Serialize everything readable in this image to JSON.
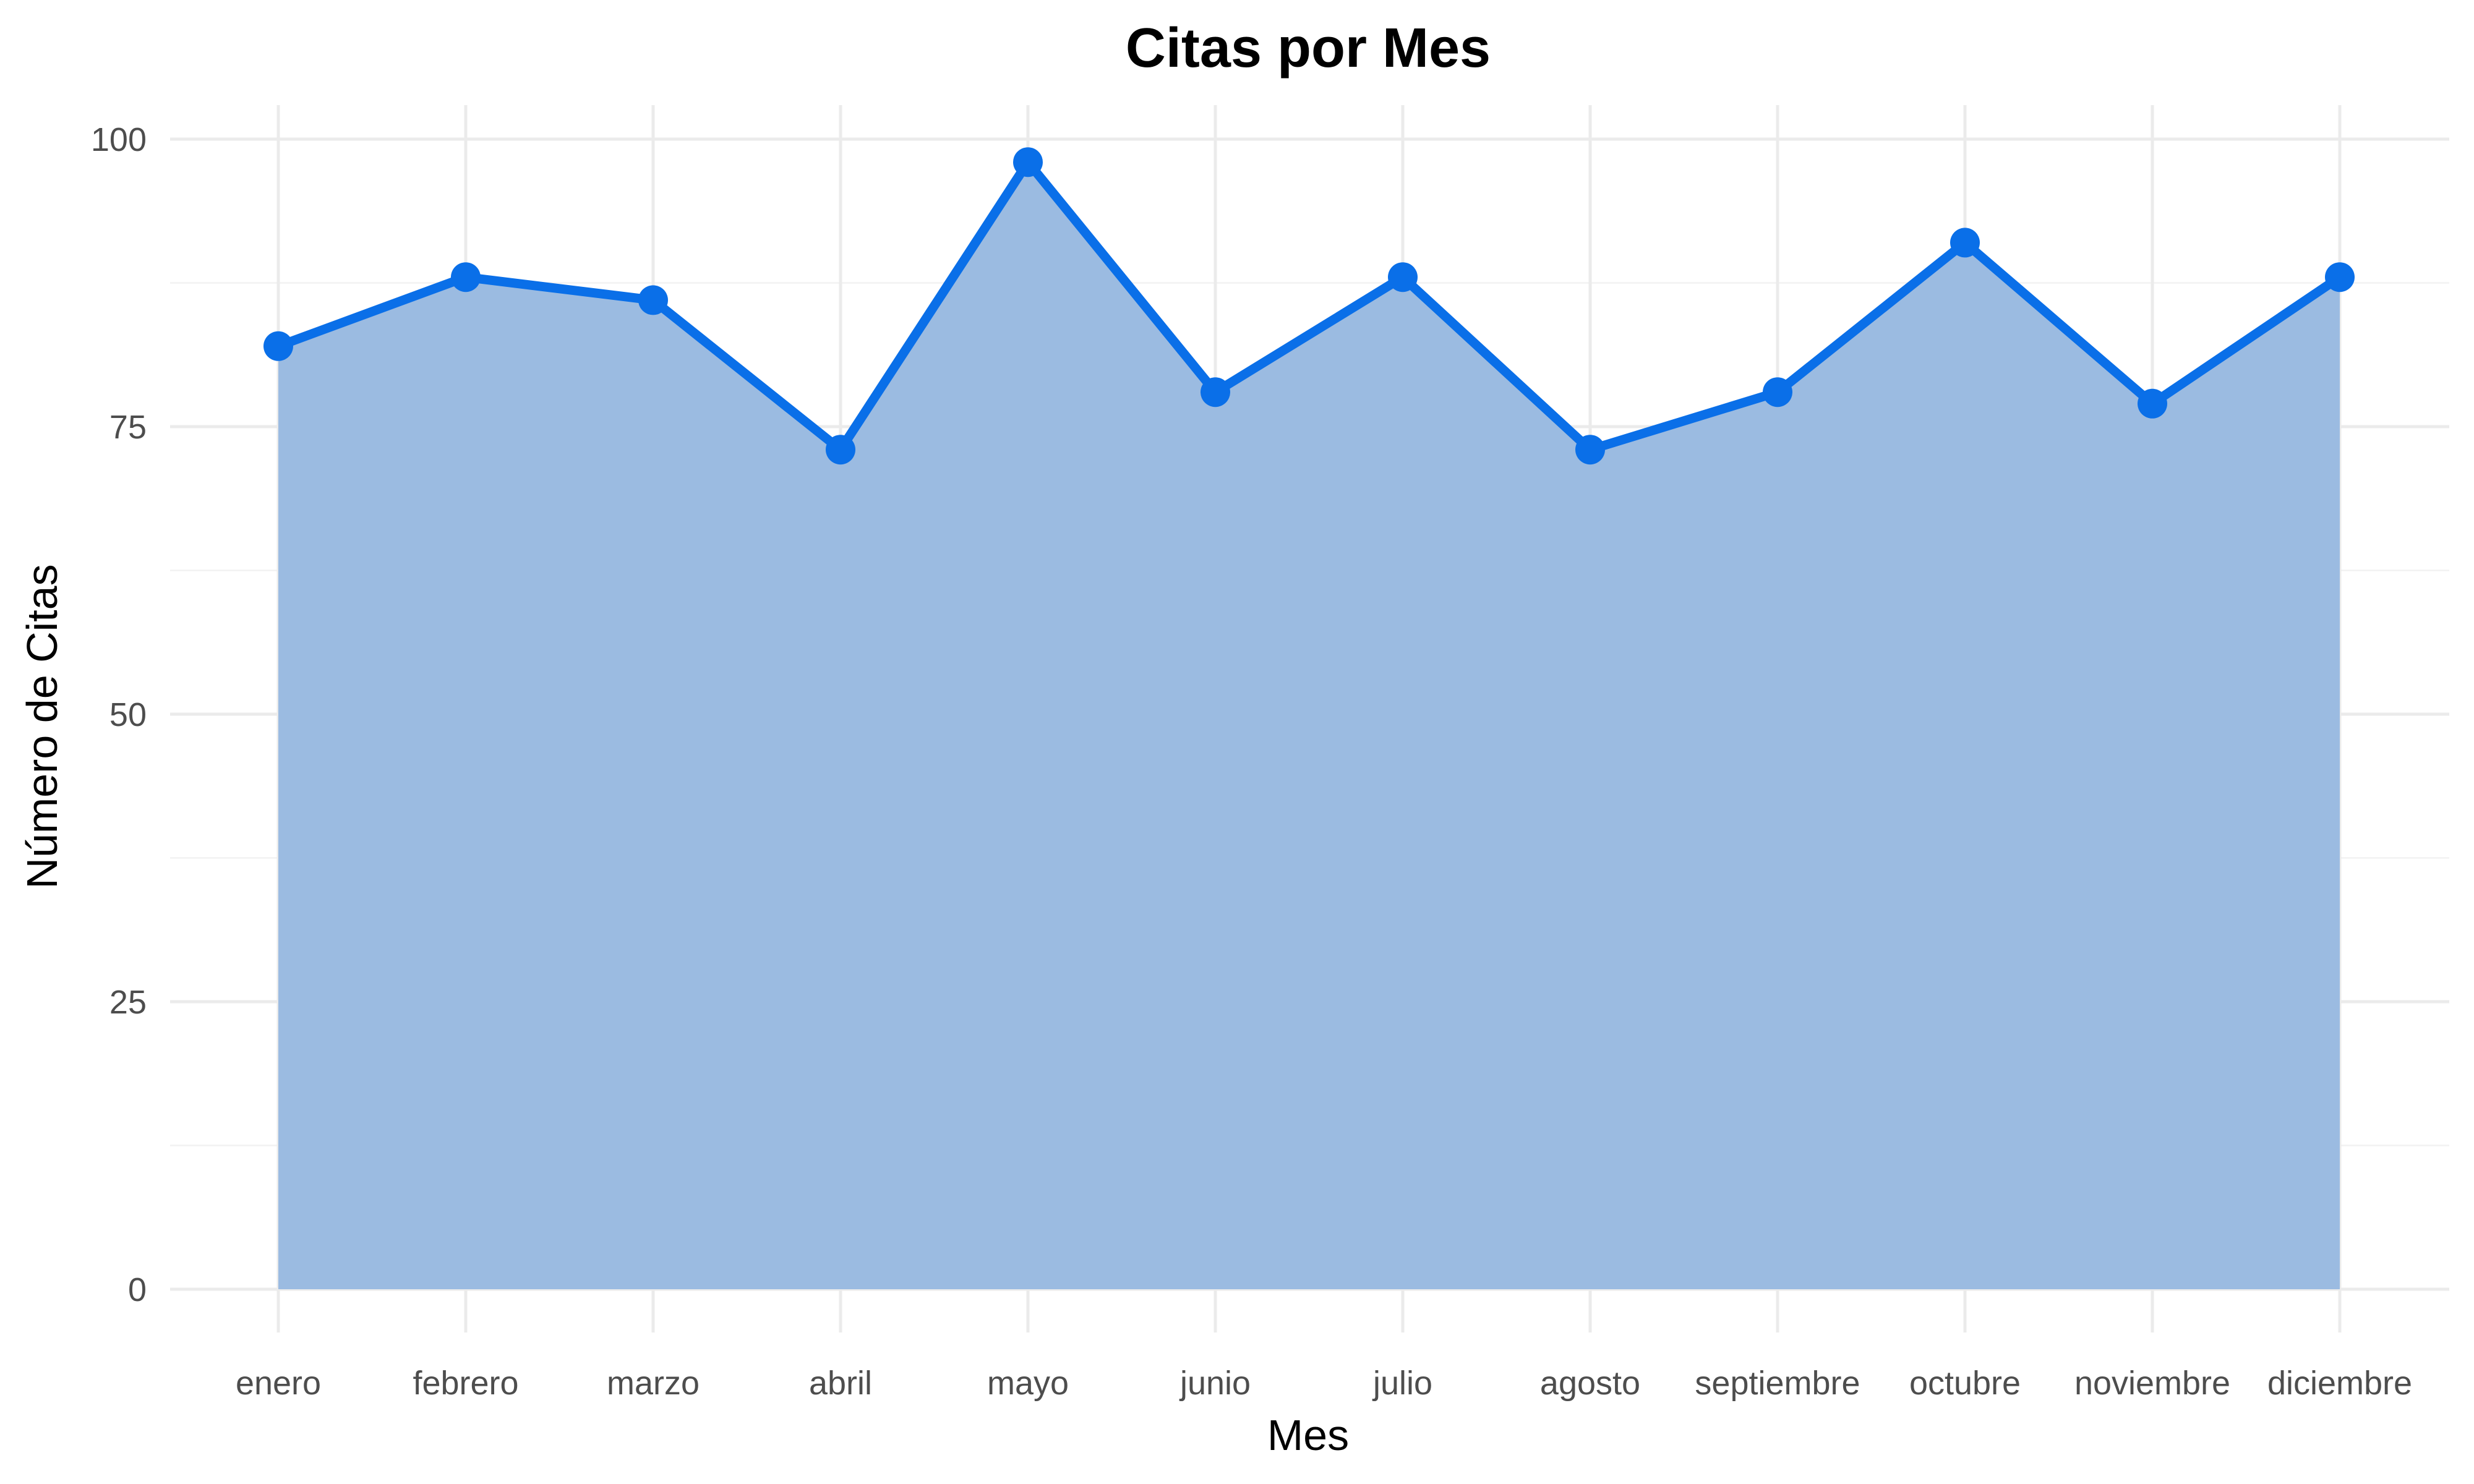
{
  "chart_data": {
    "type": "area",
    "title": "Citas por Mes",
    "xlabel": "Mes",
    "ylabel": "Número de Citas",
    "categories": [
      "enero",
      "febrero",
      "marzo",
      "abril",
      "mayo",
      "junio",
      "julio",
      "agosto",
      "septiembre",
      "octubre",
      "noviembre",
      "diciembre"
    ],
    "values": [
      82,
      88,
      86,
      73,
      98,
      78,
      88,
      73,
      78,
      91,
      77,
      88
    ],
    "ylim": [
      0,
      100
    ],
    "yticks": [
      "0",
      "25",
      "50",
      "75",
      "100"
    ],
    "grid": true,
    "legend": "none",
    "colors": {
      "line": "#0a6fe8",
      "area": "#98b9e0",
      "point": "#0a6fe8"
    }
  }
}
